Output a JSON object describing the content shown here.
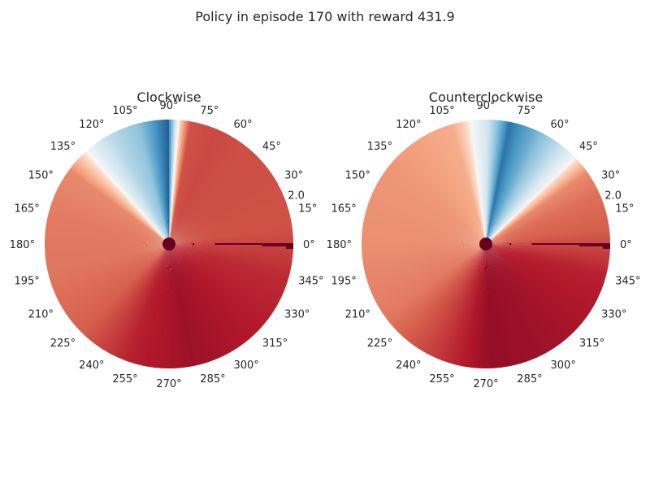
{
  "figure": {
    "suptitle": "Policy in episode 170 with reward 431.9"
  },
  "chart_data": [
    {
      "type": "heatmap",
      "projection": "polar",
      "title": "Clockwise",
      "colormap": "RdBu",
      "angle_tick_labels": [
        "0°",
        "15°",
        "30°",
        "45°",
        "60°",
        "75°",
        "90°",
        "105°",
        "120°",
        "135°",
        "150°",
        "165°",
        "180°",
        "195°",
        "210°",
        "225°",
        "240°",
        "255°",
        "270°",
        "285°",
        "300°",
        "315°",
        "330°",
        "345°"
      ],
      "radial_tick_labels": [
        "2.0"
      ],
      "rmax": 2.2,
      "sectors_deg": [
        {
          "a0": 0,
          "a1": 15,
          "value": -0.55
        },
        {
          "a0": 15,
          "a1": 30,
          "value": -0.55
        },
        {
          "a0": 30,
          "a1": 45,
          "value": -0.56
        },
        {
          "a0": 45,
          "a1": 60,
          "value": -0.56
        },
        {
          "a0": 60,
          "a1": 75,
          "value": -0.58
        },
        {
          "a0": 75,
          "a1": 85,
          "value": -0.55
        },
        {
          "a0": 85,
          "a1": 88,
          "value": 0.1
        },
        {
          "a0": 88,
          "a1": 93,
          "value": 0.85
        },
        {
          "a0": 93,
          "a1": 100,
          "value": 0.7
        },
        {
          "a0": 100,
          "a1": 110,
          "value": 0.45
        },
        {
          "a0": 110,
          "a1": 122,
          "value": 0.32
        },
        {
          "a0": 122,
          "a1": 130,
          "value": 0.15
        },
        {
          "a0": 130,
          "a1": 137,
          "value": -0.05
        },
        {
          "a0": 137,
          "a1": 150,
          "value": -0.35
        },
        {
          "a0": 150,
          "a1": 180,
          "value": -0.4
        },
        {
          "a0": 180,
          "a1": 210,
          "value": -0.42
        },
        {
          "a0": 210,
          "a1": 240,
          "value": -0.5
        },
        {
          "a0": 240,
          "a1": 262,
          "value": -0.72
        },
        {
          "a0": 262,
          "a1": 300,
          "value": -0.82
        },
        {
          "a0": 300,
          "a1": 330,
          "value": -0.75
        },
        {
          "a0": 330,
          "a1": 360,
          "value": -0.68
        }
      ]
    },
    {
      "type": "heatmap",
      "projection": "polar",
      "title": "Counterclockwise",
      "colormap": "RdBu",
      "angle_tick_labels": [
        "0°",
        "15°",
        "30°",
        "45°",
        "60°",
        "75°",
        "90°",
        "105°",
        "120°",
        "135°",
        "150°",
        "165°",
        "180°",
        "195°",
        "210°",
        "225°",
        "240°",
        "255°",
        "270°",
        "285°",
        "300°",
        "315°",
        "330°",
        "345°"
      ],
      "radial_tick_labels": [
        "2.0"
      ],
      "rmax": 2.2,
      "sectors_deg": [
        {
          "a0": 0,
          "a1": 15,
          "value": -0.5
        },
        {
          "a0": 15,
          "a1": 30,
          "value": -0.45
        },
        {
          "a0": 30,
          "a1": 40,
          "value": -0.35
        },
        {
          "a0": 40,
          "a1": 50,
          "value": 0.05
        },
        {
          "a0": 50,
          "a1": 60,
          "value": 0.3
        },
        {
          "a0": 60,
          "a1": 72,
          "value": 0.55
        },
        {
          "a0": 72,
          "a1": 86,
          "value": 0.8
        },
        {
          "a0": 86,
          "a1": 92,
          "value": 0.2
        },
        {
          "a0": 92,
          "a1": 120,
          "value": -0.22
        },
        {
          "a0": 120,
          "a1": 160,
          "value": -0.3
        },
        {
          "a0": 160,
          "a1": 200,
          "value": -0.33
        },
        {
          "a0": 200,
          "a1": 230,
          "value": -0.4
        },
        {
          "a0": 230,
          "a1": 255,
          "value": -0.6
        },
        {
          "a0": 255,
          "a1": 290,
          "value": -0.85
        },
        {
          "a0": 290,
          "a1": 330,
          "value": -0.8
        },
        {
          "a0": 330,
          "a1": 360,
          "value": -0.72
        }
      ]
    }
  ]
}
